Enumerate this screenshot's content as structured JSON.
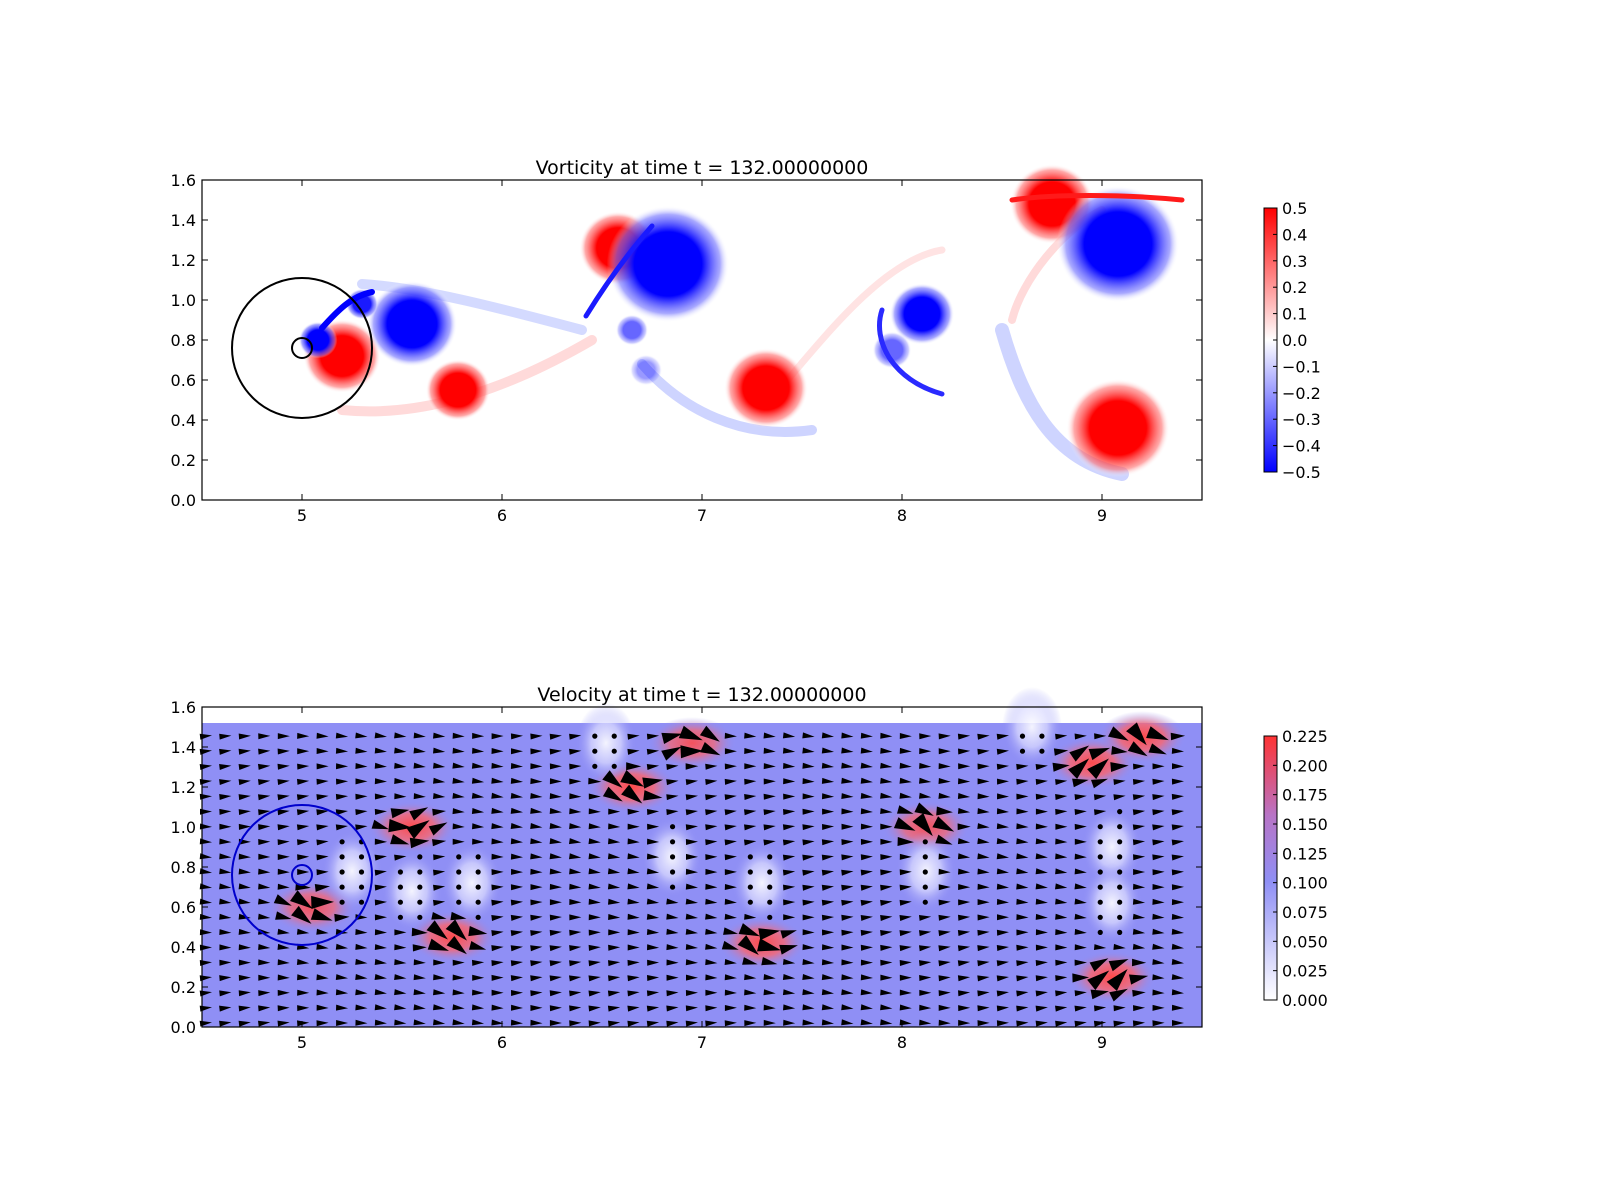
{
  "chart_data": [
    {
      "type": "heatmap",
      "title": "Vorticity at time t =    132.00000000",
      "xlim": [
        4.5,
        9.5
      ],
      "ylim": [
        0.0,
        1.6
      ],
      "x_ticks": [
        "5",
        "6",
        "7",
        "8",
        "9"
      ],
      "y_ticks": [
        "0.0",
        "0.2",
        "0.4",
        "0.6",
        "0.8",
        "1.0",
        "1.2",
        "1.4",
        "1.6"
      ],
      "colormap": "bwr",
      "clim": [
        -0.5,
        0.5
      ],
      "colorbar_ticks": [
        "−0.5",
        "−0.4",
        "−0.3",
        "−0.2",
        "−0.1",
        "0.0",
        "0.1",
        "0.2",
        "0.3",
        "0.4",
        "0.5"
      ],
      "circles": [
        {
          "cx": 5.0,
          "cy": 0.76,
          "r": 0.35,
          "color": "#000000"
        },
        {
          "cx": 5.0,
          "cy": 0.76,
          "r": 0.05,
          "color": "#000000"
        }
      ],
      "vortices": [
        {
          "x": 5.55,
          "y": 0.88,
          "strength": -1.0,
          "radius": 0.14
        },
        {
          "x": 5.2,
          "y": 0.72,
          "strength": 1.0,
          "radius": 0.12
        },
        {
          "x": 5.08,
          "y": 0.8,
          "strength": -1.0,
          "radius": 0.06
        },
        {
          "x": 5.3,
          "y": 0.98,
          "strength": -0.9,
          "radius": 0.05
        },
        {
          "x": 5.78,
          "y": 0.55,
          "strength": 1.0,
          "radius": 0.1
        },
        {
          "x": 6.58,
          "y": 1.26,
          "strength": 1.0,
          "radius": 0.12
        },
        {
          "x": 6.83,
          "y": 1.18,
          "strength": -1.0,
          "radius": 0.19
        },
        {
          "x": 6.65,
          "y": 0.85,
          "strength": -0.6,
          "radius": 0.05
        },
        {
          "x": 6.72,
          "y": 0.65,
          "strength": -0.4,
          "radius": 0.05
        },
        {
          "x": 7.32,
          "y": 0.56,
          "strength": 1.0,
          "radius": 0.13
        },
        {
          "x": 8.1,
          "y": 0.93,
          "strength": -1.0,
          "radius": 0.1
        },
        {
          "x": 7.95,
          "y": 0.75,
          "strength": -0.6,
          "radius": 0.06
        },
        {
          "x": 8.75,
          "y": 1.48,
          "strength": 1.0,
          "radius": 0.13
        },
        {
          "x": 9.08,
          "y": 1.28,
          "strength": -1.0,
          "radius": 0.19
        },
        {
          "x": 9.08,
          "y": 0.36,
          "strength": 1.0,
          "radius": 0.16
        }
      ]
    },
    {
      "type": "heatmap",
      "title": "Velocity at time t =    132.00000000",
      "xlim": [
        4.5,
        9.5
      ],
      "ylim": [
        0.0,
        1.6
      ],
      "x_ticks": [
        "5",
        "6",
        "7",
        "8",
        "9"
      ],
      "y_ticks": [
        "0.0",
        "0.2",
        "0.4",
        "0.6",
        "0.8",
        "1.0",
        "1.2",
        "1.4",
        "1.6"
      ],
      "colormap": "bwr (upper half)",
      "clim": [
        0.0,
        0.225
      ],
      "colorbar_ticks": [
        "0.000",
        "0.025",
        "0.050",
        "0.075",
        "0.100",
        "0.125",
        "0.150",
        "0.175",
        "0.200",
        "0.225"
      ],
      "background_speed": 0.1,
      "circles": [
        {
          "cx": 5.0,
          "cy": 0.76,
          "r": 0.35,
          "color": "#0000cc"
        },
        {
          "cx": 5.0,
          "cy": 0.76,
          "r": 0.05,
          "color": "#0000cc"
        }
      ],
      "high_speed_regions": [
        {
          "x": 5.05,
          "y": 0.6,
          "speed": 0.2
        },
        {
          "x": 5.55,
          "y": 1.0,
          "speed": 0.22
        },
        {
          "x": 5.75,
          "y": 0.45,
          "speed": 0.22
        },
        {
          "x": 6.65,
          "y": 1.2,
          "speed": 0.23
        },
        {
          "x": 6.95,
          "y": 1.42,
          "speed": 0.2
        },
        {
          "x": 7.3,
          "y": 0.42,
          "speed": 0.22
        },
        {
          "x": 8.12,
          "y": 1.0,
          "speed": 0.2
        },
        {
          "x": 8.95,
          "y": 1.32,
          "speed": 0.22
        },
        {
          "x": 9.2,
          "y": 1.45,
          "speed": 0.23
        },
        {
          "x": 9.05,
          "y": 0.25,
          "speed": 0.23
        }
      ],
      "low_speed_regions": [
        {
          "x": 5.25,
          "y": 0.78,
          "speed": 0.02
        },
        {
          "x": 5.55,
          "y": 0.68,
          "speed": 0.02
        },
        {
          "x": 5.85,
          "y": 0.72,
          "speed": 0.02
        },
        {
          "x": 6.52,
          "y": 1.42,
          "speed": 0.0
        },
        {
          "x": 6.85,
          "y": 0.85,
          "speed": 0.02
        },
        {
          "x": 7.3,
          "y": 0.72,
          "speed": 0.02
        },
        {
          "x": 8.12,
          "y": 0.78,
          "speed": 0.02
        },
        {
          "x": 9.05,
          "y": 0.9,
          "speed": 0.0
        },
        {
          "x": 9.05,
          "y": 0.62,
          "speed": 0.02
        },
        {
          "x": 8.65,
          "y": 1.5,
          "speed": 0.0
        }
      ]
    }
  ]
}
